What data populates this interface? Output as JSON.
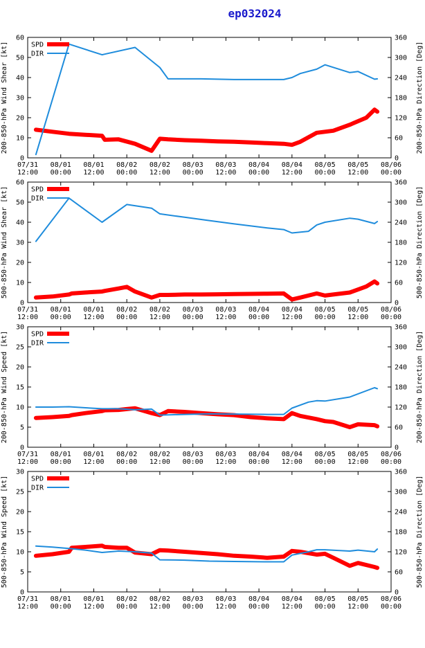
{
  "title": "ep032024",
  "colors": {
    "spd": "#ff0000",
    "dir": "#1e8cdc",
    "title": "#1a1acc",
    "axis": "#000000"
  },
  "chart_data": {
    "type": "line",
    "title": "ep032024",
    "x_tick_labels": [
      [
        "07/31",
        "12:00"
      ],
      [
        "08/01",
        "00:00"
      ],
      [
        "08/01",
        "12:00"
      ],
      [
        "08/02",
        "00:00"
      ],
      [
        "08/02",
        "12:00"
      ],
      [
        "08/03",
        "00:00"
      ],
      [
        "08/03",
        "12:00"
      ],
      [
        "08/04",
        "00:00"
      ],
      [
        "08/04",
        "12:00"
      ],
      [
        "08/05",
        "00:00"
      ],
      [
        "08/05",
        "12:00"
      ],
      [
        "08/06",
        "00:00"
      ]
    ],
    "x_range_hours": [
      0,
      132
    ],
    "legend": [
      "SPD",
      "DIR"
    ],
    "panels": [
      {
        "ylabel": "200-850-hPa Wind Shear [kt]",
        "y2label": "200-850-hPa Direction [Deg]",
        "ylim": [
          0,
          60
        ],
        "yticks": [
          "0",
          "10",
          "20",
          "30",
          "40",
          "50",
          "60"
        ],
        "y2lim": [
          0,
          360
        ],
        "y2ticks": [
          "0",
          "60",
          "120",
          "180",
          "240",
          "300",
          "360"
        ],
        "series": [
          {
            "name": "SPD",
            "axis": "left",
            "x": [
              3,
              9,
              15,
              21,
              27,
              28,
              33,
              39,
              45,
              48,
              51,
              57,
              63,
              69,
              75,
              81,
              87,
              93,
              96,
              99,
              105,
              111,
              117,
              123,
              126,
              127
            ],
            "y": [
              14,
              13,
              12,
              11.5,
              11,
              9,
              9.2,
              7,
              3.5,
              9.5,
              9.2,
              8.8,
              8.5,
              8.2,
              8,
              7.7,
              7.3,
              7,
              6.5,
              8,
              12.5,
              13.5,
              16.5,
              20,
              24,
              23
            ]
          },
          {
            "name": "DIR",
            "axis": "left2",
            "x": [
              3,
              15,
              27,
              28,
              39,
              48,
              51,
              63,
              75,
              87,
              93,
              96,
              99,
              105,
              108,
              117,
              120,
              126,
              127
            ],
            "y": [
              10,
              340,
              308,
              310,
              330,
              270,
              236,
              236,
              234,
              234,
              234,
              240,
              252,
              265,
              278,
              255,
              258,
              235,
              236
            ]
          }
        ]
      },
      {
        "ylabel": "500-850-hPa Wind Shear [kt]",
        "y2label": "500-850-hPa Direction [Deg]",
        "ylim": [
          0,
          60
        ],
        "yticks": [
          "0",
          "10",
          "20",
          "30",
          "40",
          "50",
          "60"
        ],
        "y2lim": [
          0,
          360
        ],
        "y2ticks": [
          "0",
          "60",
          "120",
          "180",
          "240",
          "300",
          "360"
        ],
        "series": [
          {
            "name": "SPD",
            "axis": "left",
            "x": [
              3,
              9,
              15,
              16,
              21,
              27,
              28,
              33,
              36,
              39,
              45,
              48,
              51,
              57,
              63,
              69,
              75,
              81,
              87,
              93,
              96,
              99,
              105,
              108,
              111,
              117,
              123,
              126,
              127
            ],
            "y": [
              2.5,
              3,
              4,
              4.5,
              5,
              5.5,
              5.8,
              7,
              7.8,
              5.5,
              2.5,
              3.8,
              3.8,
              4,
              4,
              4.1,
              4.2,
              4.3,
              4.4,
              4.5,
              1.5,
              2.5,
              4.5,
              3.5,
              4,
              5,
              8,
              10.5,
              9.5
            ]
          },
          {
            "name": "DIR",
            "axis": "right",
            "x": [
              3,
              15,
              27,
              36,
              45,
              48,
              57,
              66,
              75,
              87,
              93,
              96,
              102,
              105,
              108,
              117,
              120,
              126,
              127
            ],
            "y": [
              183,
              312,
              240,
              293,
              282,
              265,
              255,
              245,
              235,
              223,
              218,
              208,
              213,
              232,
              240,
              252,
              249,
              236,
              242
            ]
          }
        ]
      },
      {
        "ylabel": "200-850-hPa Wind Speed [kt]",
        "y2label": "200-850-hPa Direction [Deg]",
        "ylim": [
          0,
          30
        ],
        "yticks": [
          "0",
          "5",
          "10",
          "15",
          "20",
          "25",
          "30"
        ],
        "y2lim": [
          0,
          360
        ],
        "y2ticks": [
          "0",
          "60",
          "120",
          "180",
          "240",
          "300",
          "360"
        ],
        "series": [
          {
            "name": "SPD",
            "axis": "left",
            "x": [
              3,
              9,
              15,
              16,
              21,
              27,
              28,
              33,
              36,
              39,
              45,
              48,
              51,
              57,
              63,
              69,
              75,
              81,
              87,
              93,
              96,
              99,
              105,
              108,
              111,
              117,
              120,
              126,
              127
            ],
            "y": [
              7.3,
              7.5,
              7.8,
              8,
              8.5,
              9,
              9.2,
              9.3,
              9.5,
              9.7,
              8.5,
              8,
              9,
              8.8,
              8.5,
              8.2,
              8,
              7.5,
              7.2,
              7,
              8.5,
              7.8,
              7,
              6.5,
              6.3,
              5,
              5.7,
              5.5,
              5.2
            ]
          },
          {
            "name": "DIR",
            "axis": "right",
            "x": [
              3,
              9,
              15,
              21,
              27,
              33,
              39,
              45,
              48,
              57,
              66,
              75,
              87,
              93,
              96,
              102,
              105,
              108,
              117,
              126,
              127
            ],
            "y": [
              120,
              120,
              121,
              118,
              115,
              115,
              112,
              114,
              96,
              98,
              100,
              99,
              98,
              98,
              117,
              135,
              139,
              138,
              150,
              178,
              175
            ]
          }
        ]
      },
      {
        "ylabel": "500-850-hPa Wind Speed [kt]",
        "y2label": "500-850-hPa Direction [Deg]",
        "ylim": [
          0,
          30
        ],
        "yticks": [
          "0",
          "5",
          "10",
          "15",
          "20",
          "25",
          "30"
        ],
        "y2lim": [
          0,
          360
        ],
        "y2ticks": [
          "0",
          "60",
          "120",
          "180",
          "240",
          "300",
          "360"
        ],
        "series": [
          {
            "name": "SPD",
            "axis": "left",
            "x": [
              3,
              9,
              15,
              16,
              21,
              27,
              28,
              33,
              36,
              39,
              45,
              48,
              51,
              57,
              63,
              69,
              75,
              81,
              87,
              93,
              96,
              99,
              105,
              108,
              111,
              117,
              120,
              126,
              127
            ],
            "y": [
              9,
              9.4,
              10,
              11,
              11.2,
              11.5,
              11.2,
              11,
              11,
              9.8,
              9.4,
              10.4,
              10.3,
              10,
              9.7,
              9.4,
              9,
              8.8,
              8.5,
              8.8,
              10.2,
              10,
              9.3,
              9.5,
              8.5,
              6.5,
              7.2,
              6.2,
              6
            ]
          },
          {
            "name": "DIR",
            "axis": "right",
            "x": [
              3,
              9,
              15,
              21,
              27,
              33,
              39,
              45,
              48,
              57,
              66,
              75,
              87,
              93,
              96,
              102,
              105,
              108,
              117,
              120,
              126,
              127
            ],
            "y": [
              137,
              134,
              130,
              125,
              118,
              122,
              120,
              116,
              96,
              95,
              92,
              91,
              90,
              90,
              110,
              120,
              126,
              126,
              122,
              125,
              120,
              128
            ]
          }
        ]
      }
    ]
  }
}
